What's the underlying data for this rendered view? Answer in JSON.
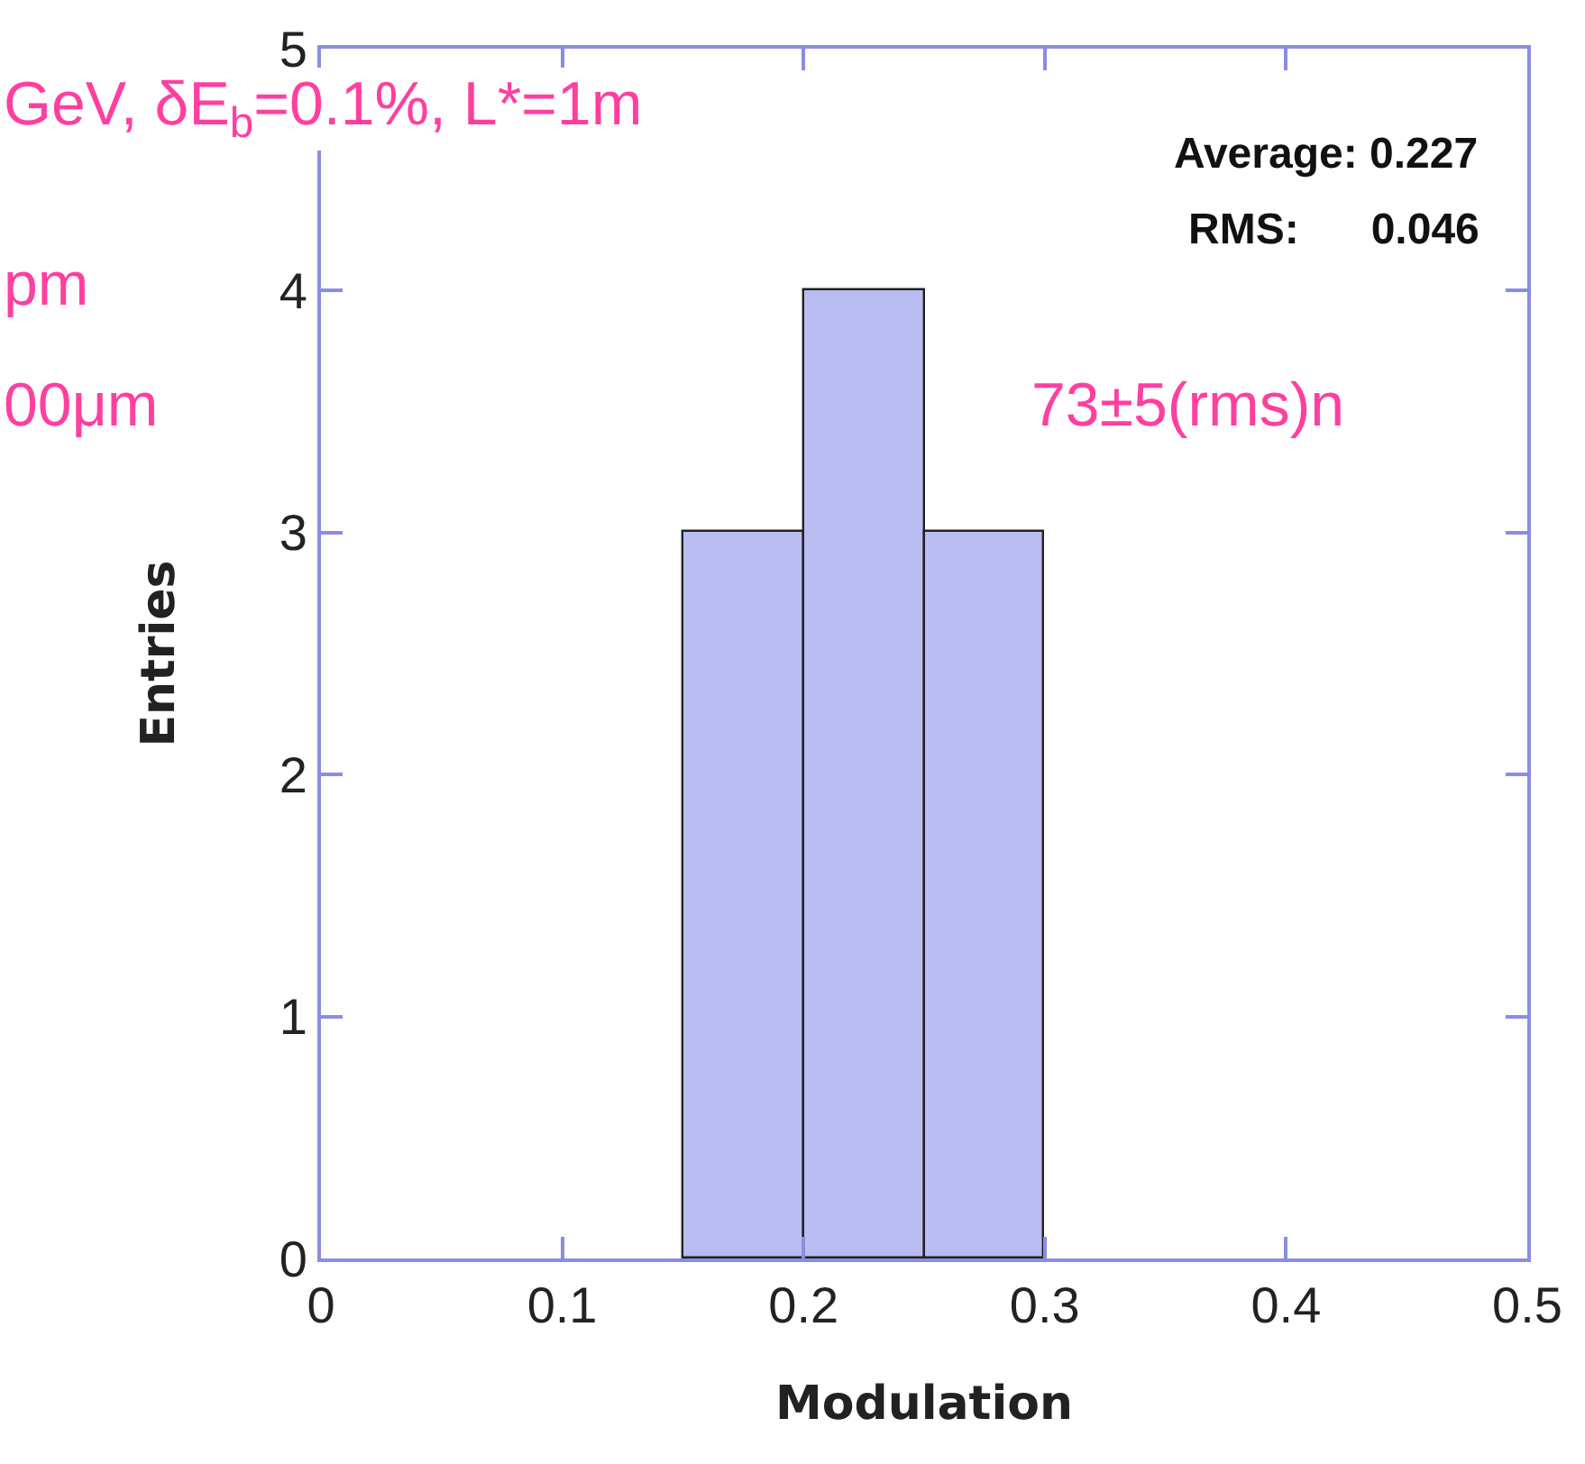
{
  "chart_data": {
    "type": "histogram",
    "xlabel": "Modulation",
    "ylabel": "Entries",
    "bins": [
      0.15,
      0.2,
      0.25,
      0.3
    ],
    "values": [
      3,
      4,
      3
    ],
    "color": "#b9bdf2",
    "xlim": [
      0,
      0.5
    ],
    "xticks": [
      0,
      0.1,
      0.2,
      0.3,
      0.4,
      0.5
    ],
    "ylim": [
      0,
      5
    ],
    "yticks": [
      0,
      1,
      2,
      3,
      4,
      5
    ],
    "grid": false,
    "annotations": [
      "GeV, δE$_{b}$=0.1%, L*=1m",
      "pm",
      "00μm",
      "73±5(rms)n",
      "Average: 0.227",
      "RMS:      0.046"
    ]
  }
}
